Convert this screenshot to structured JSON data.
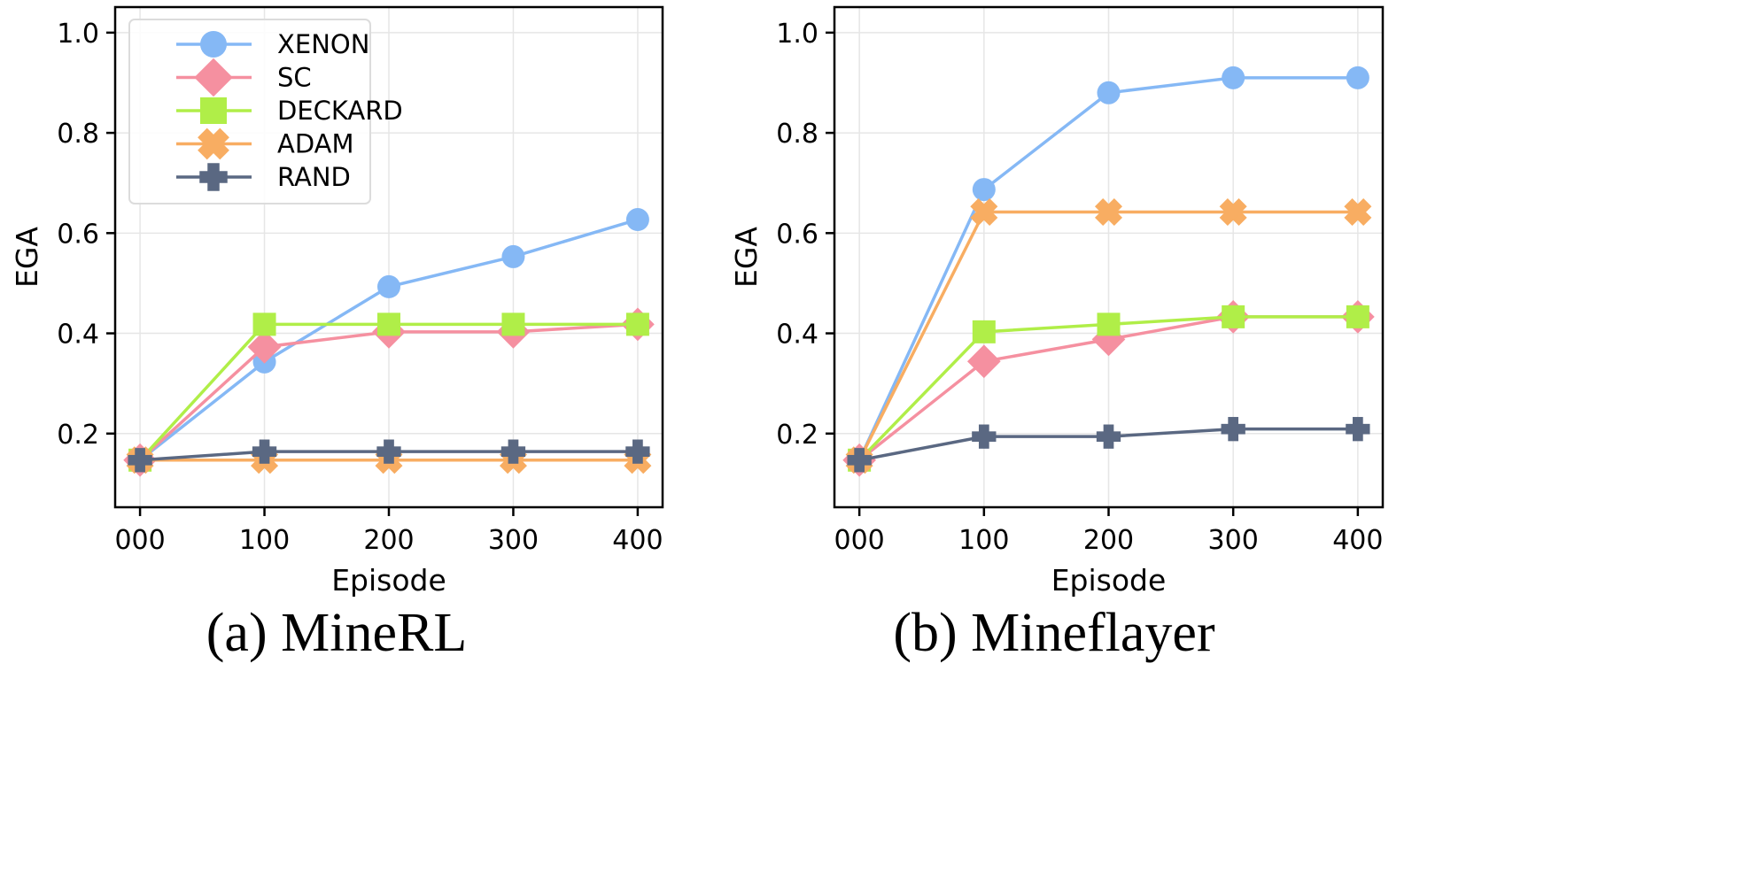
{
  "chart_data": [
    {
      "type": "line",
      "caption": "(a) MineRL",
      "xlabel": "Episode",
      "ylabel": "EGA",
      "x": [
        0,
        100,
        200,
        300,
        400
      ],
      "xtick_labels": [
        "000",
        "100",
        "200",
        "300",
        "400"
      ],
      "ytick_values": [
        0.2,
        0.4,
        0.6,
        0.8,
        1.0
      ],
      "ytick_labels": [
        "0.2",
        "0.4",
        "0.6",
        "0.8",
        "1.0"
      ],
      "xlim": [
        -20,
        420
      ],
      "ylim": [
        0.053,
        1.051
      ],
      "grid": true,
      "legend": "top-left",
      "series": [
        {
          "name": "XENON",
          "color": "#85b8f5",
          "marker": "circle",
          "values": [
            0.147,
            0.343,
            0.493,
            0.553,
            0.627
          ]
        },
        {
          "name": "SC",
          "color": "#f590a0",
          "marker": "diamond",
          "values": [
            0.147,
            0.373,
            0.403,
            0.403,
            0.418
          ]
        },
        {
          "name": "DECKARD",
          "color": "#b0ee48",
          "marker": "square",
          "values": [
            0.147,
            0.418,
            0.418,
            0.418,
            0.418
          ]
        },
        {
          "name": "ADAM",
          "color": "#f8ad62",
          "marker": "x",
          "values": [
            0.147,
            0.147,
            0.147,
            0.147,
            0.147
          ]
        },
        {
          "name": "RAND",
          "color": "#5a6882",
          "marker": "plus",
          "values": [
            0.147,
            0.164,
            0.164,
            0.164,
            0.164
          ]
        }
      ]
    },
    {
      "type": "line",
      "caption": "(b) Mineflayer",
      "xlabel": "Episode",
      "ylabel": "EGA",
      "x": [
        0,
        100,
        200,
        300,
        400
      ],
      "xtick_labels": [
        "000",
        "100",
        "200",
        "300",
        "400"
      ],
      "ytick_values": [
        0.2,
        0.4,
        0.6,
        0.8,
        1.0
      ],
      "ytick_labels": [
        "0.2",
        "0.4",
        "0.6",
        "0.8",
        "1.0"
      ],
      "xlim": [
        -20,
        420
      ],
      "ylim": [
        0.053,
        1.051
      ],
      "grid": true,
      "legend": "none",
      "series": [
        {
          "name": "XENON",
          "color": "#85b8f5",
          "marker": "circle",
          "values": [
            0.147,
            0.687,
            0.88,
            0.91,
            0.91
          ]
        },
        {
          "name": "SC",
          "color": "#f590a0",
          "marker": "diamond",
          "values": [
            0.147,
            0.344,
            0.388,
            0.433,
            0.433
          ]
        },
        {
          "name": "DECKARD",
          "color": "#b0ee48",
          "marker": "square",
          "values": [
            0.147,
            0.403,
            0.418,
            0.433,
            0.433
          ]
        },
        {
          "name": "ADAM",
          "color": "#f8ad62",
          "marker": "x",
          "values": [
            0.147,
            0.642,
            0.642,
            0.642,
            0.642
          ]
        },
        {
          "name": "RAND",
          "color": "#5a6882",
          "marker": "plus",
          "values": [
            0.147,
            0.194,
            0.194,
            0.209,
            0.209
          ]
        }
      ]
    }
  ]
}
